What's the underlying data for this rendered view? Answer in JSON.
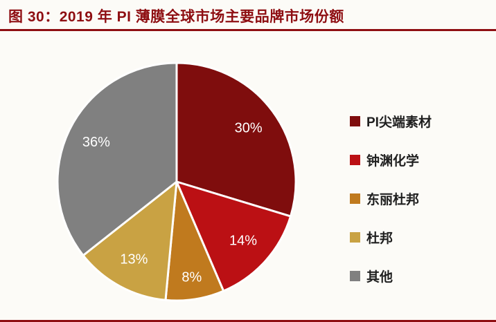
{
  "figure": {
    "title": "图 30：2019 年 PI 薄膜全球市场主要品牌市场份额"
  },
  "chart_data": {
    "type": "pie",
    "title": "2019 年 PI 薄膜全球市场主要品牌市场份额",
    "labels": [
      "PI尖端素材",
      "钟渊化学",
      "东丽杜邦",
      "杜邦",
      "其他"
    ],
    "values": [
      30,
      14,
      8,
      13,
      36
    ],
    "unit": "%",
    "data_labels": [
      "30%",
      "14%",
      "8%",
      "13%",
      "36%"
    ],
    "colors": [
      "#7f0d0d",
      "#bb1014",
      "#c07a1e",
      "#c9a243",
      "#808080"
    ],
    "legend_position": "right",
    "start_angle_deg": 0,
    "direction": "clockwise",
    "slice_border_color": "#ffffff",
    "label_color": "#ffffff"
  }
}
